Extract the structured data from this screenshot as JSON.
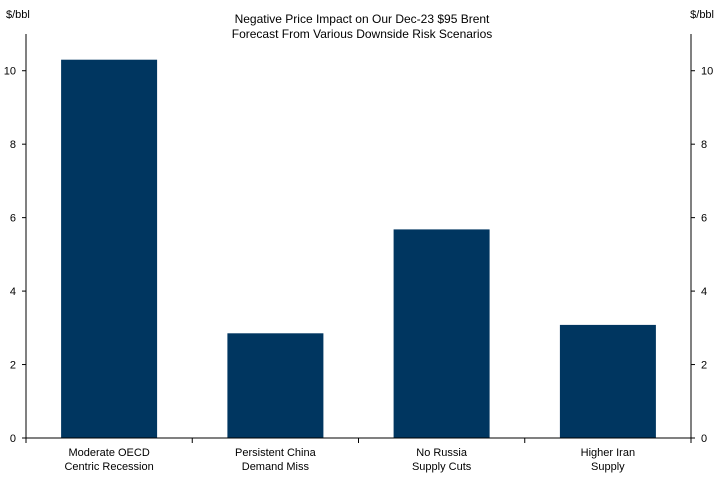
{
  "chart_data": {
    "type": "bar",
    "title_lines": [
      "Negative Price Impact on Our Dec-23 $95 Brent",
      "Forecast From Various Downside Risk Scenarios"
    ],
    "y_unit_left": "$/bbl",
    "y_unit_right": "$/bbl",
    "categories": [
      [
        "Moderate OECD",
        "Centric Recession"
      ],
      [
        "Persistent China",
        "Demand Miss"
      ],
      [
        "No Russia",
        "Supply Cuts"
      ],
      [
        "Higher Iran",
        "Supply"
      ]
    ],
    "values": [
      10.3,
      2.85,
      5.68,
      3.08
    ],
    "ylim": [
      0,
      11
    ],
    "yticks": [
      0,
      2,
      4,
      6,
      8,
      10
    ],
    "bar_color": "#003660",
    "grid": false,
    "legend": "none"
  }
}
